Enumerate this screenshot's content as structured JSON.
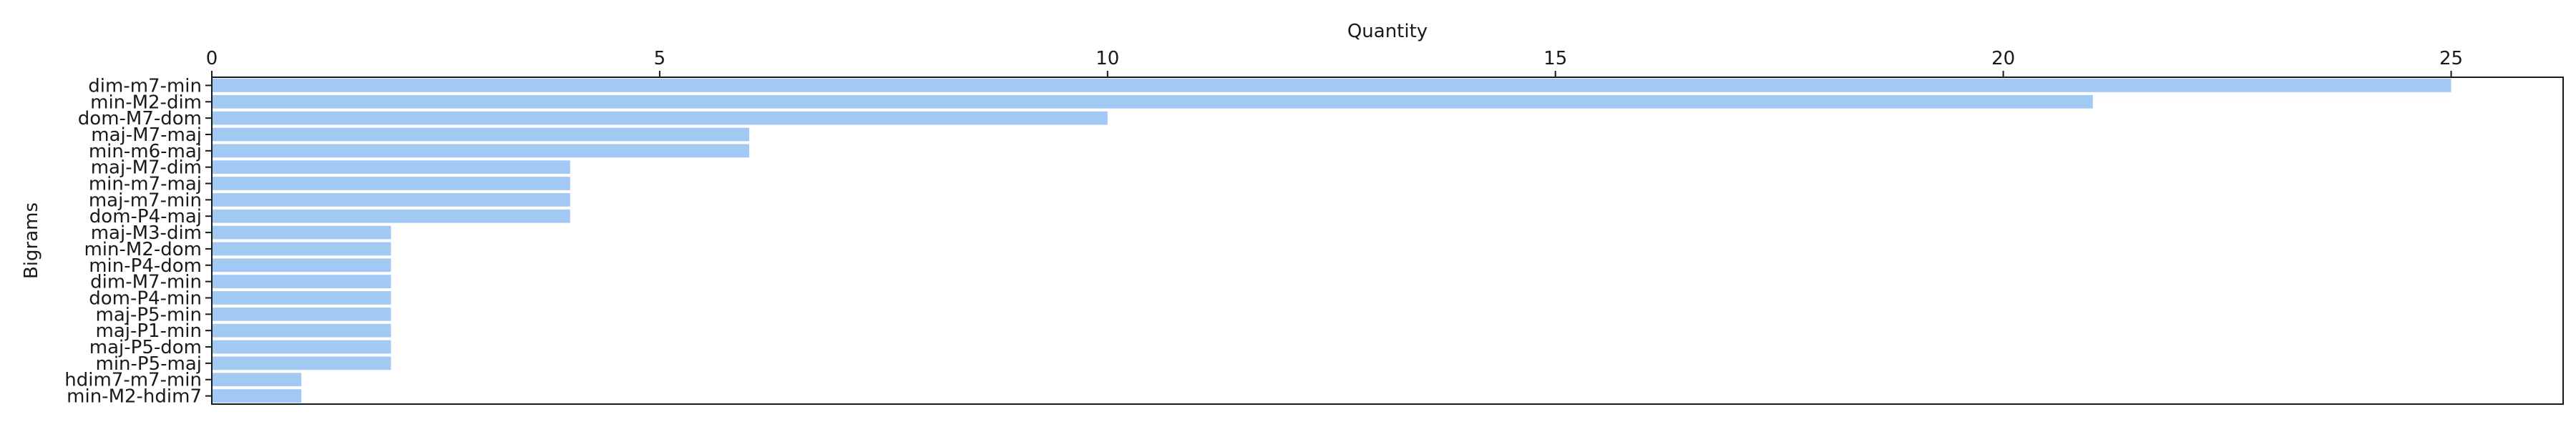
{
  "chart_data": {
    "type": "bar",
    "orientation": "horizontal",
    "xlabel": "Quantity",
    "ylabel": "Bigrams",
    "xlim": [
      0,
      26.25
    ],
    "xticks": [
      0,
      5,
      10,
      15,
      20,
      25
    ],
    "x_axis_position": "top",
    "grid": false,
    "bar_color": "#a1c9f4",
    "categories": [
      "dim-m7-min",
      "min-M2-dim",
      "dom-M7-dom",
      "maj-M7-maj",
      "min-m6-maj",
      "maj-M7-dim",
      "min-m7-maj",
      "maj-m7-min",
      "dom-P4-maj",
      "maj-M3-dim",
      "min-M2-dom",
      "min-P4-dom",
      "dim-M7-min",
      "dom-P4-min",
      "maj-P5-min",
      "maj-P1-min",
      "maj-P5-dom",
      "min-P5-maj",
      "hdim7-m7-min",
      "min-M2-hdim7"
    ],
    "values": [
      25,
      21,
      10,
      6,
      6,
      4,
      4,
      4,
      4,
      2,
      2,
      2,
      2,
      2,
      2,
      2,
      2,
      2,
      1,
      1
    ]
  }
}
